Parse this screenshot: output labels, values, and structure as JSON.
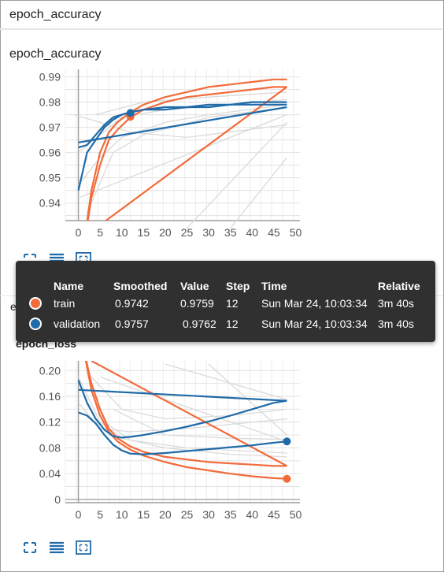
{
  "header": {
    "title": "epoch_accuracy"
  },
  "accuracy_card": {
    "title": "epoch_accuracy"
  },
  "loss_card": {
    "title": "epoch_loss",
    "title_fragment": "epoch"
  },
  "colors": {
    "train": "#f26b3a",
    "validation": "#1f6aa8",
    "run": "#dadada",
    "axis": "#9e9e9e"
  },
  "icons": [
    "fullscreen-icon",
    "lines-icon",
    "fit-domain-icon"
  ],
  "tooltip": {
    "headers": {
      "name": "Name",
      "smoothed": "Smoothed",
      "value": "Value",
      "step": "Step",
      "time": "Time",
      "relative": "Relative"
    },
    "rows": [
      {
        "name": "train",
        "smoothed": "0.9742",
        "value": "0.9759",
        "step": "12",
        "time": "Sun Mar 24, 10:03:34",
        "relative": "3m 40s",
        "color": "#f26b3a"
      },
      {
        "name": "validation",
        "smoothed": "0.9757",
        "value": "0.9762",
        "step": "12",
        "time": "Sun Mar 24, 10:03:34",
        "relative": "3m 40s",
        "color": "#1f6aa8"
      }
    ]
  },
  "chart_data": [
    {
      "type": "line",
      "title": "epoch_accuracy",
      "xlim": [
        -3,
        51
      ],
      "ylim": [
        0.933,
        0.993
      ],
      "xticks": [
        0,
        5,
        10,
        15,
        20,
        25,
        30,
        35,
        40,
        45,
        50
      ],
      "yticks": [
        0.94,
        0.95,
        0.96,
        0.97,
        0.98,
        0.99
      ],
      "grid": true,
      "series": [
        {
          "name": "train",
          "color": "#f26b3a",
          "x": [
            1,
            3,
            5,
            7,
            9,
            12,
            15,
            20,
            25,
            30,
            35,
            40,
            45,
            48
          ],
          "y": [
            0.92,
            0.942,
            0.955,
            0.965,
            0.969,
            0.974,
            0.977,
            0.98,
            0.982,
            0.983,
            0.984,
            0.985,
            0.986,
            0.986
          ]
        },
        {
          "name": "train",
          "color": "#f26b3a",
          "x": [
            1,
            3,
            5,
            7,
            9,
            12,
            15,
            20,
            25,
            30,
            35,
            40,
            45,
            48
          ],
          "y": [
            0.92,
            0.945,
            0.96,
            0.968,
            0.972,
            0.976,
            0.979,
            0.982,
            0.984,
            0.986,
            0.987,
            0.988,
            0.989,
            0.989
          ]
        },
        {
          "name": "train",
          "color": "#f26b3a",
          "x": [
            4,
            48
          ],
          "y": [
            0.93,
            0.986
          ]
        },
        {
          "name": "validation",
          "color": "#1f6aa8",
          "x": [
            0,
            2,
            4,
            6,
            8,
            10,
            12,
            15,
            20,
            25,
            30,
            35,
            40,
            45,
            48
          ],
          "y": [
            0.945,
            0.96,
            0.965,
            0.97,
            0.973,
            0.975,
            0.976,
            0.977,
            0.978,
            0.978,
            0.978,
            0.979,
            0.979,
            0.979,
            0.979
          ]
        },
        {
          "name": "validation",
          "color": "#1f6aa8",
          "x": [
            0,
            2,
            4,
            6,
            8,
            10,
            12,
            15,
            20,
            25,
            30,
            35,
            40,
            45,
            48
          ],
          "y": [
            0.962,
            0.963,
            0.967,
            0.971,
            0.974,
            0.975,
            0.976,
            0.977,
            0.977,
            0.978,
            0.979,
            0.979,
            0.98,
            0.98,
            0.98
          ]
        },
        {
          "name": "validation",
          "color": "#1f6aa8",
          "x": [
            0,
            48
          ],
          "y": [
            0.964,
            0.978
          ]
        }
      ],
      "markers": [
        {
          "name": "train",
          "x": 12,
          "y": 0.9742,
          "color": "#f26b3a"
        },
        {
          "name": "validation",
          "x": 12,
          "y": 0.9757,
          "color": "#1f6aa8"
        }
      ]
    },
    {
      "type": "line",
      "title": "epoch_loss",
      "xlim": [
        -3,
        51
      ],
      "ylim": [
        -0.005,
        0.215
      ],
      "xticks": [
        0,
        5,
        10,
        15,
        20,
        25,
        30,
        35,
        40,
        45,
        50
      ],
      "yticks": [
        0,
        0.04,
        0.08,
        0.12,
        0.16,
        0.2
      ],
      "grid": true,
      "series": [
        {
          "name": "train",
          "color": "#f26b3a",
          "x": [
            1,
            3,
            5,
            7,
            9,
            12,
            15,
            20,
            25,
            30,
            35,
            40,
            45,
            48
          ],
          "y": [
            0.24,
            0.17,
            0.13,
            0.105,
            0.09,
            0.077,
            0.068,
            0.058,
            0.05,
            0.045,
            0.04,
            0.036,
            0.033,
            0.032
          ]
        },
        {
          "name": "train",
          "color": "#f26b3a",
          "x": [
            1,
            3,
            5,
            7,
            9,
            12,
            15,
            20,
            25,
            30,
            35,
            40,
            45,
            48
          ],
          "y": [
            0.24,
            0.18,
            0.14,
            0.11,
            0.095,
            0.082,
            0.074,
            0.066,
            0.062,
            0.058,
            0.056,
            0.054,
            0.052,
            0.052
          ]
        },
        {
          "name": "train",
          "color": "#f26b3a",
          "x": [
            3,
            48
          ],
          "y": [
            0.215,
            0.052
          ]
        },
        {
          "name": "validation",
          "color": "#1f6aa8",
          "x": [
            0,
            2,
            4,
            6,
            8,
            10,
            12,
            15,
            20,
            25,
            30,
            35,
            40,
            45,
            48
          ],
          "y": [
            0.185,
            0.15,
            0.125,
            0.108,
            0.098,
            0.096,
            0.097,
            0.1,
            0.106,
            0.113,
            0.121,
            0.13,
            0.14,
            0.15,
            0.153
          ]
        },
        {
          "name": "validation",
          "color": "#1f6aa8",
          "x": [
            0,
            2,
            4,
            6,
            8,
            10,
            12,
            15,
            20,
            25,
            30,
            35,
            40,
            45,
            48
          ],
          "y": [
            0.135,
            0.13,
            0.118,
            0.1,
            0.085,
            0.076,
            0.071,
            0.07,
            0.072,
            0.075,
            0.078,
            0.081,
            0.084,
            0.088,
            0.09
          ]
        },
        {
          "name": "validation",
          "color": "#1f6aa8",
          "x": [
            0,
            48
          ],
          "y": [
            0.17,
            0.153
          ]
        }
      ],
      "markers": [
        {
          "name": "train",
          "x": 48,
          "y": 0.032,
          "color": "#f26b3a"
        },
        {
          "name": "validation",
          "x": 48,
          "y": 0.09,
          "color": "#1f6aa8"
        }
      ]
    }
  ]
}
